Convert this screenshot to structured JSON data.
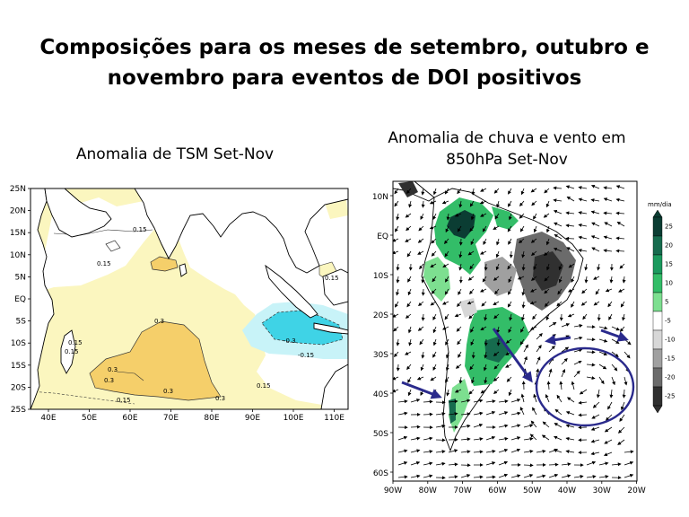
{
  "title": {
    "line1": "Composições para os meses de setembro, outubro e",
    "line2": "novembro para eventos de DOI positivos"
  },
  "left_map": {
    "subtitle": "Anomalia de TSM Set-Nov",
    "lat_labels": [
      "25N",
      "20N",
      "15N",
      "10N",
      "5N",
      "EQ",
      "5S",
      "10S",
      "15S",
      "20S",
      "25S"
    ],
    "lon_labels": [
      "40E",
      "50E",
      "60E",
      "70E",
      "80E",
      "90E",
      "100E",
      "110E"
    ],
    "contour_labels": [
      "0.15",
      "0.15",
      "0.3",
      "0.3",
      "0.15",
      "0.15",
      "0.3",
      "0.3",
      "0.3",
      "0.15",
      "-0.3",
      "-0.15",
      "0.15",
      "0.15"
    ],
    "colors": {
      "positive_light": "#fbf6bf",
      "positive_strong": "#f5cf6a",
      "negative_light": "#c8f3f8",
      "negative_strong": "#3fd3e6"
    }
  },
  "right_map": {
    "subtitle_line1": "Anomalia de chuva e vento em",
    "subtitle_line2": "850hPa Set-Nov",
    "lat_labels": [
      "10N",
      "EQ",
      "10S",
      "20S",
      "30S",
      "40S",
      "50S",
      "60S"
    ],
    "lon_labels": [
      "90W",
      "80W",
      "70W",
      "60W",
      "50W",
      "40W",
      "30W",
      "20W"
    ],
    "colorbar": {
      "unit": "mm/dia",
      "labels": [
        "25",
        "20",
        "15",
        "10",
        "5",
        "-5",
        "-10",
        "-15",
        "-20",
        "-25"
      ],
      "colors": [
        "#0b3d33",
        "#166b4e",
        "#1b9a5e",
        "#33bd68",
        "#7ddf90",
        "#ffffff",
        "#d7d7d7",
        "#a0a0a0",
        "#6b6b6b",
        "#303030"
      ]
    },
    "annotation_color": "#2a2a8c"
  }
}
